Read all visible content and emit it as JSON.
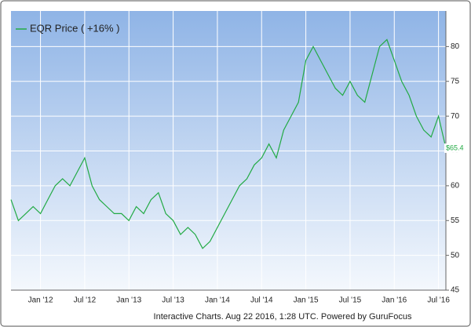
{
  "chart_data": {
    "type": "line",
    "footer": "Interactive Charts. Aug 22 2016, 1:28 UTC. Powered by GuruFocus",
    "legend": "upper left",
    "grid": true,
    "categories": [
      null,
      null,
      null,
      null,
      "Jan '12",
      null,
      null,
      null,
      null,
      null,
      "Jul '12",
      null,
      null,
      null,
      null,
      null,
      "Jan '13",
      null,
      null,
      null,
      null,
      null,
      "Jul '13",
      null,
      null,
      null,
      null,
      null,
      "Jan '14",
      null,
      null,
      null,
      null,
      null,
      "Jul '14",
      null,
      null,
      null,
      null,
      null,
      "Jan '15",
      null,
      null,
      null,
      null,
      null,
      "Jul '15",
      null,
      null,
      null,
      null,
      null,
      "Jan '16",
      null,
      null,
      null,
      null,
      null,
      "Jul '16",
      null
    ],
    "series": [
      {
        "name": "EQR Price ( +16% )",
        "color": "#22aa44",
        "values": [
          58,
          55,
          56,
          57,
          56,
          58,
          60,
          61,
          60,
          62,
          64,
          60,
          58,
          57,
          56,
          56,
          55,
          57,
          56,
          58,
          59,
          56,
          55,
          53,
          54,
          53,
          51,
          52,
          54,
          56,
          58,
          60,
          61,
          63,
          64,
          66,
          64,
          68,
          70,
          72,
          78,
          80,
          78,
          76,
          74,
          73,
          75,
          73,
          72,
          76,
          80,
          81,
          78,
          75,
          73,
          70,
          68,
          67,
          70,
          65.4
        ],
        "value_labels": [
          null,
          null,
          null,
          null,
          null,
          null,
          null,
          null,
          null,
          null,
          null,
          null,
          null,
          null,
          null,
          null,
          null,
          null,
          null,
          null,
          null,
          null,
          null,
          null,
          null,
          null,
          null,
          null,
          null,
          null,
          null,
          null,
          null,
          null,
          null,
          null,
          null,
          null,
          null,
          null,
          null,
          null,
          null,
          null,
          null,
          null,
          null,
          null,
          null,
          null,
          null,
          null,
          null,
          null,
          null,
          null,
          null,
          null,
          null,
          "$65.4"
        ]
      }
    ],
    "ylim": [
      45,
      85
    ],
    "yticks": [
      45,
      50,
      55,
      60,
      65,
      70,
      75,
      80
    ]
  }
}
